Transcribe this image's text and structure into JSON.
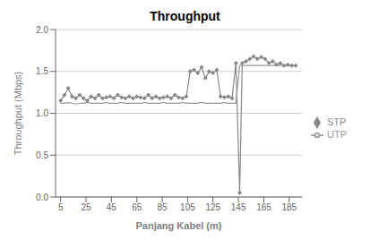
{
  "chart_data": {
    "type": "line",
    "title": "Throughput",
    "x_label": "Panjang Kabel (m)",
    "y_label": "Throughput (Mbps)",
    "x": [
      5,
      8,
      11,
      14,
      17,
      20,
      23,
      26,
      29,
      32,
      35,
      38,
      41,
      44,
      47,
      50,
      53,
      56,
      59,
      62,
      65,
      68,
      71,
      74,
      77,
      80,
      83,
      86,
      89,
      92,
      95,
      98,
      101,
      104,
      107,
      110,
      113,
      116,
      119,
      122,
      125,
      128,
      131,
      134,
      137,
      140,
      143,
      146,
      148,
      151,
      154,
      157,
      160,
      163,
      166,
      169,
      172,
      175,
      178,
      181,
      184,
      187,
      190
    ],
    "series": [
      {
        "name": "STP",
        "color": "#888888",
        "marker": "diamond",
        "values": [
          1.15,
          1.22,
          1.3,
          1.2,
          1.18,
          1.22,
          1.18,
          1.15,
          1.2,
          1.18,
          1.22,
          1.18,
          1.19,
          1.2,
          1.18,
          1.22,
          1.19,
          1.18,
          1.2,
          1.18,
          1.2,
          1.19,
          1.18,
          1.22,
          1.18,
          1.2,
          1.18,
          1.19,
          1.2,
          1.18,
          1.22,
          1.19,
          1.18,
          1.2,
          1.5,
          1.52,
          1.48,
          1.55,
          1.42,
          1.5,
          1.48,
          1.52,
          1.2,
          1.19,
          1.2,
          1.18,
          1.6,
          0.05,
          1.6,
          1.62,
          1.65,
          1.68,
          1.65,
          1.67,
          1.65,
          1.6,
          1.62,
          1.58,
          1.6,
          1.57,
          1.58,
          1.57,
          1.57
        ]
      },
      {
        "name": "UTP",
        "color": "#999999",
        "values": [
          1.12,
          1.12,
          1.13,
          1.12,
          1.11,
          1.12,
          1.12,
          1.13,
          1.12,
          1.12,
          1.12,
          1.12,
          1.13,
          1.12,
          1.12,
          1.12,
          1.13,
          1.12,
          1.12,
          1.12,
          1.12,
          1.12,
          1.13,
          1.12,
          1.12,
          1.12,
          1.12,
          1.13,
          1.12,
          1.12,
          1.12,
          1.12,
          1.13,
          1.12,
          1.12,
          1.12,
          1.12,
          1.13,
          1.12,
          1.12,
          1.12,
          1.12,
          1.12,
          1.13,
          1.12,
          1.12,
          1.12,
          1.57,
          1.57,
          1.57,
          1.57,
          1.57,
          1.57,
          1.57,
          1.57,
          1.57,
          1.57,
          1.57,
          1.57,
          1.57,
          1.57,
          1.57,
          1.57
        ]
      }
    ],
    "xlim": [
      1,
      195
    ],
    "xticks": [
      5,
      25,
      45,
      65,
      85,
      105,
      125,
      145,
      165,
      185
    ],
    "ylim": [
      0,
      2
    ],
    "yticks": [
      {
        "value": 0,
        "label": "0.0"
      },
      0.5,
      {
        "value": 1,
        "label": "1.0"
      },
      1.5,
      {
        "value": 2,
        "label": "2.0"
      }
    ],
    "grid": true,
    "legend": "right"
  }
}
